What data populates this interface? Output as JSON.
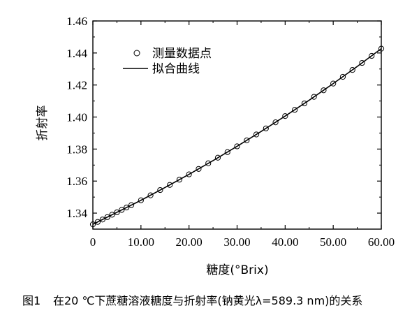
{
  "chart_data": {
    "type": "scatter",
    "title": "",
    "xlabel": "糖度(°Brix)",
    "ylabel": "折射率",
    "xlim": [
      0,
      60
    ],
    "ylim": [
      1.33,
      1.46
    ],
    "xticks": [
      "0",
      "10.00",
      "20.00",
      "30.00",
      "40.00",
      "50.00",
      "60.00"
    ],
    "yticks": [
      "1.34",
      "1.36",
      "1.38",
      "1.40",
      "1.42",
      "1.44",
      "1.46"
    ],
    "legend": {
      "position": "top-left"
    },
    "series": [
      {
        "name": "测量数据点",
        "kind": "scatter",
        "marker": "open-circle",
        "x": [
          0,
          1,
          2,
          3,
          4,
          5,
          6,
          7,
          8,
          10,
          12,
          14,
          16,
          18,
          20,
          22,
          24,
          26,
          28,
          30,
          32,
          34,
          36,
          38,
          40,
          42,
          44,
          46,
          48,
          50,
          52,
          54,
          56,
          58,
          60
        ],
        "y": [
          1.333,
          1.3345,
          1.336,
          1.3375,
          1.339,
          1.3405,
          1.342,
          1.3435,
          1.345,
          1.348,
          1.3511,
          1.3544,
          1.3576,
          1.3609,
          1.3642,
          1.3676,
          1.3711,
          1.3746,
          1.3781,
          1.3817,
          1.3854,
          1.3891,
          1.3929,
          1.3967,
          1.4006,
          1.4045,
          1.4085,
          1.4126,
          1.4167,
          1.4209,
          1.4251,
          1.4294,
          1.4338,
          1.4382,
          1.4427
        ]
      },
      {
        "name": "拟合曲线",
        "kind": "line",
        "color": "#000000",
        "x": [
          0,
          5,
          10,
          15,
          20,
          25,
          30,
          35,
          40,
          45,
          50,
          55,
          60
        ],
        "y": [
          1.333,
          1.3405,
          1.348,
          1.356,
          1.3642,
          1.3728,
          1.3817,
          1.391,
          1.4006,
          1.4105,
          1.4209,
          1.4316,
          1.4427
        ]
      }
    ]
  },
  "caption": {
    "number": "图1",
    "text": "在20 ℃下蔗糖溶液糖度与折射率(钠黄光λ=589.3 nm)的关系"
  }
}
